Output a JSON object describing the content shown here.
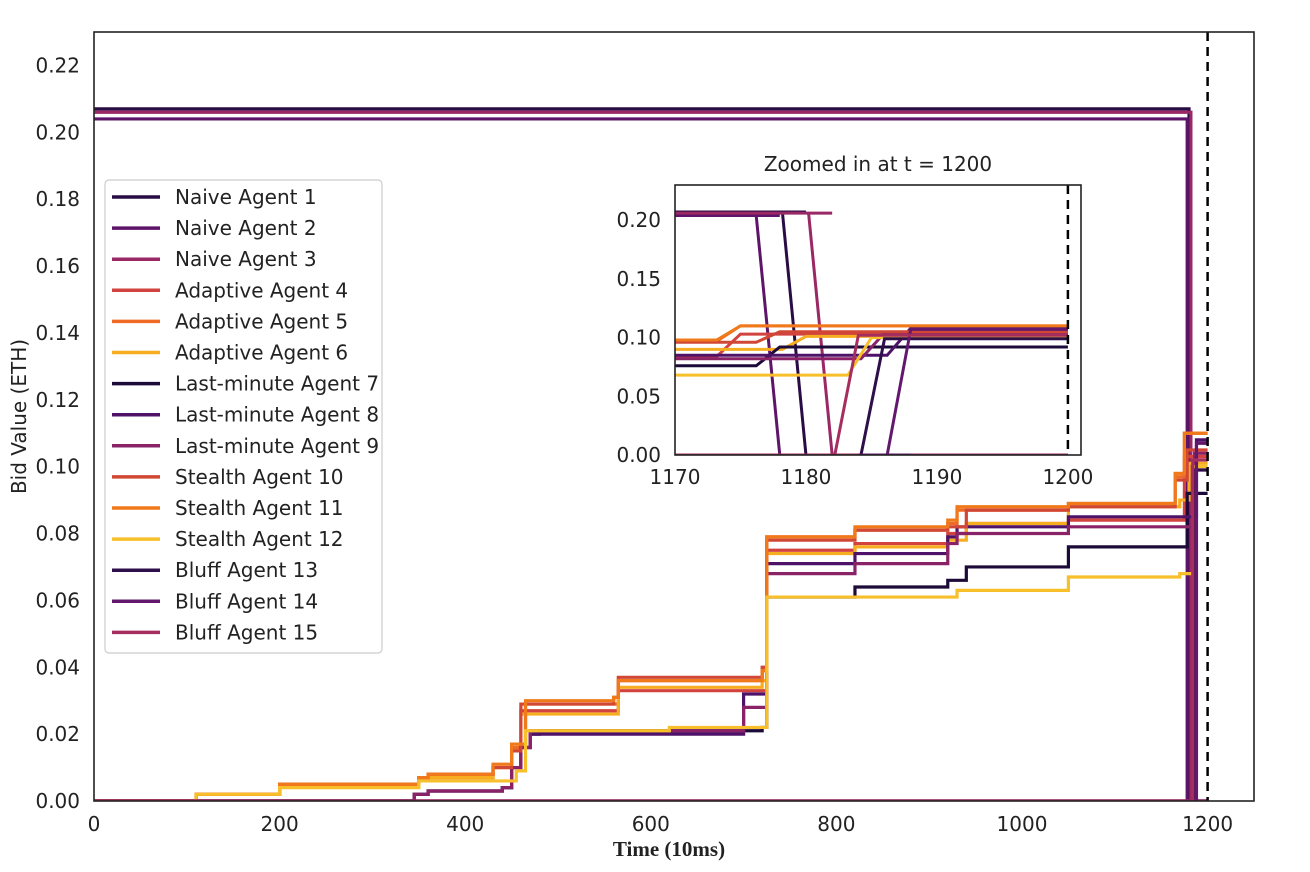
{
  "chart_data": {
    "type": "line",
    "xlabel": "Time (10ms)",
    "ylabel": "Bid Value (ETH)",
    "xlim": [
      0,
      1250
    ],
    "ylim": [
      0,
      0.23
    ],
    "xticks": [
      "0",
      "200",
      "400",
      "600",
      "800",
      "1000",
      "1200"
    ],
    "yticks": [
      "0.00",
      "0.02",
      "0.04",
      "0.06",
      "0.08",
      "0.10",
      "0.12",
      "0.14",
      "0.16",
      "0.18",
      "0.20",
      "0.22"
    ],
    "grid": false,
    "legend_position": "center-left",
    "vline_x": 1200,
    "series": [
      {
        "name": "Naive Agent 1",
        "color": "#2a0c45",
        "x": [
          0,
          1180,
          1180,
          1200
        ],
        "y": [
          0.207,
          0.207,
          0.0,
          0.0
        ]
      },
      {
        "name": "Naive Agent 2",
        "color": "#5e1569",
        "x": [
          0,
          1178,
          1178,
          1200
        ],
        "y": [
          0.204,
          0.204,
          0.0,
          0.0
        ]
      },
      {
        "name": "Naive Agent 3",
        "color": "#9a2865",
        "x": [
          0,
          1182,
          1182,
          1200
        ],
        "y": [
          0.206,
          0.206,
          0.0,
          0.0
        ]
      },
      {
        "name": "Adaptive Agent 4",
        "color": "#d2423e",
        "x": [
          0,
          110,
          200,
          350,
          360,
          430,
          450,
          460,
          560,
          565,
          720,
          725,
          820,
          920,
          940,
          1050,
          1170,
          1175,
          1200
        ],
        "y": [
          0,
          0.002,
          0.005,
          0.006,
          0.007,
          0.01,
          0.015,
          0.027,
          0.027,
          0.033,
          0.033,
          0.075,
          0.077,
          0.08,
          0.083,
          0.084,
          0.084,
          0.103,
          0.103
        ]
      },
      {
        "name": "Adaptive Agent 5",
        "color": "#ee6a25",
        "x": [
          0,
          110,
          200,
          350,
          360,
          430,
          450,
          465,
          560,
          565,
          720,
          725,
          820,
          920,
          930,
          1050,
          1165,
          1175,
          1200
        ],
        "y": [
          0,
          0.002,
          0.005,
          0.006,
          0.008,
          0.01,
          0.016,
          0.029,
          0.029,
          0.036,
          0.039,
          0.079,
          0.081,
          0.083,
          0.087,
          0.089,
          0.097,
          0.11,
          0.11
        ]
      },
      {
        "name": "Adaptive Agent 6",
        "color": "#f6ad20",
        "x": [
          0,
          110,
          200,
          350,
          360,
          430,
          450,
          460,
          560,
          565,
          720,
          725,
          820,
          920,
          940,
          1050,
          1170,
          1180,
          1200
        ],
        "y": [
          0,
          0.002,
          0.005,
          0.006,
          0.007,
          0.01,
          0.015,
          0.026,
          0.026,
          0.034,
          0.036,
          0.074,
          0.076,
          0.078,
          0.083,
          0.088,
          0.09,
          0.101,
          0.101
        ]
      },
      {
        "name": "Last-minute Agent 7",
        "color": "#1c0a38",
        "x": [
          0,
          345,
          360,
          440,
          450,
          460,
          470,
          480,
          720,
          725,
          820,
          920,
          940,
          1050,
          1170,
          1178,
          1200
        ],
        "y": [
          0,
          0.002,
          0.003,
          0.004,
          0.01,
          0.016,
          0.02,
          0.021,
          0.022,
          0.061,
          0.064,
          0.066,
          0.07,
          0.076,
          0.076,
          0.092,
          0.092
        ]
      },
      {
        "name": "Last-minute Agent 8",
        "color": "#4e1369",
        "x": [
          0,
          345,
          360,
          440,
          450,
          460,
          470,
          700,
          720,
          725,
          820,
          920,
          930,
          1050,
          1170,
          1188,
          1200
        ],
        "y": [
          0,
          0.002,
          0.003,
          0.004,
          0.01,
          0.016,
          0.02,
          0.032,
          0.032,
          0.071,
          0.074,
          0.079,
          0.082,
          0.085,
          0.085,
          0.108,
          0.108
        ]
      },
      {
        "name": "Last-minute Agent 9",
        "color": "#8a2267",
        "x": [
          0,
          345,
          360,
          440,
          450,
          460,
          470,
          700,
          720,
          725,
          820,
          920,
          930,
          1050,
          1170,
          1186,
          1200
        ],
        "y": [
          0,
          0.002,
          0.003,
          0.004,
          0.01,
          0.016,
          0.021,
          0.028,
          0.028,
          0.068,
          0.071,
          0.077,
          0.08,
          0.082,
          0.082,
          0.104,
          0.104
        ]
      },
      {
        "name": "Stealth Agent 10",
        "color": "#d14735",
        "x": [
          0,
          110,
          200,
          350,
          360,
          430,
          450,
          460,
          560,
          565,
          720,
          725,
          820,
          920,
          940,
          1050,
          1165,
          1178,
          1200
        ],
        "y": [
          0,
          0.002,
          0.005,
          0.007,
          0.008,
          0.01,
          0.015,
          0.029,
          0.031,
          0.037,
          0.04,
          0.078,
          0.081,
          0.082,
          0.087,
          0.088,
          0.096,
          0.105,
          0.105
        ]
      },
      {
        "name": "Stealth Agent 11",
        "color": "#f07a1b",
        "x": [
          0,
          110,
          200,
          350,
          360,
          430,
          450,
          465,
          560,
          565,
          720,
          725,
          820,
          920,
          930,
          1050,
          1165,
          1175,
          1200
        ],
        "y": [
          0,
          0.002,
          0.005,
          0.007,
          0.008,
          0.011,
          0.017,
          0.03,
          0.031,
          0.036,
          0.039,
          0.079,
          0.082,
          0.084,
          0.088,
          0.089,
          0.098,
          0.11,
          0.11
        ]
      },
      {
        "name": "Stealth Agent 12",
        "color": "#f7bf2a",
        "x": [
          0,
          110,
          200,
          350,
          455,
          465,
          600,
          620,
          720,
          725,
          820,
          930,
          1050,
          1170,
          1185,
          1200
        ],
        "y": [
          0,
          0.002,
          0.004,
          0.006,
          0.009,
          0.021,
          0.021,
          0.022,
          0.022,
          0.061,
          0.061,
          0.063,
          0.067,
          0.068,
          0.1,
          0.1
        ]
      },
      {
        "name": "Bluff Agent 13",
        "color": "#2f0f4a",
        "x": [
          0,
          1186,
          1186,
          1200
        ],
        "y": [
          0.0,
          0.0,
          0.099,
          0.099
        ]
      },
      {
        "name": "Bluff Agent 14",
        "color": "#63186d",
        "x": [
          0,
          1188,
          1188,
          1200
        ],
        "y": [
          0.0,
          0.0,
          0.107,
          0.107
        ]
      },
      {
        "name": "Bluff Agent 15",
        "color": "#a52e5f",
        "x": [
          0,
          1184,
          1184,
          1200
        ],
        "y": [
          0.0,
          0.0,
          0.102,
          0.102
        ]
      }
    ],
    "inset": {
      "title": "Zoomed in at t = 1200",
      "xlim": [
        1170,
        1201
      ],
      "ylim": [
        0,
        0.23
      ],
      "xticks": [
        "1170",
        "1180",
        "1190",
        "1200"
      ],
      "yticks": [
        "0.00",
        "0.05",
        "0.10",
        "0.15",
        "0.20"
      ],
      "vline_x": 1200
    }
  }
}
